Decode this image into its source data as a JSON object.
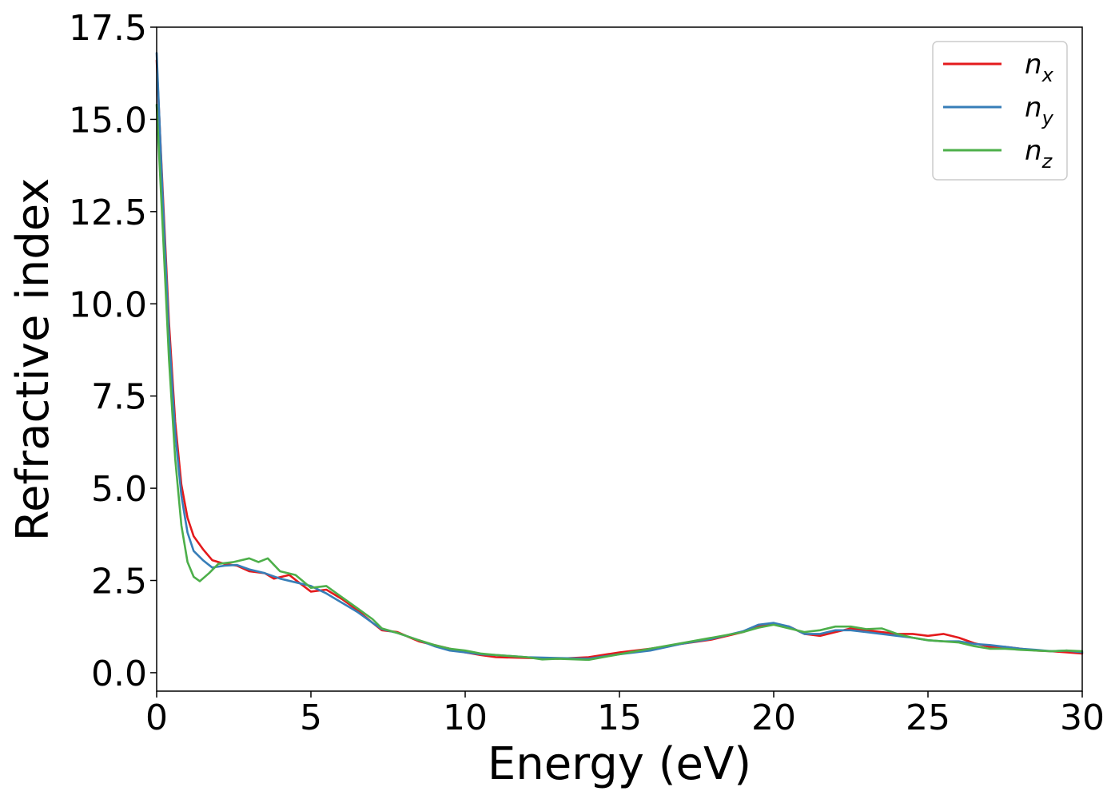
{
  "chart_data": {
    "type": "line",
    "xlabel": "Energy (eV)",
    "ylabel": "Refractive index",
    "xlim": [
      0,
      30
    ],
    "ylim": [
      -0.5,
      17.5
    ],
    "x_ticks": [
      "0",
      "5",
      "10",
      "15",
      "20",
      "25",
      "30"
    ],
    "y_ticks": [
      "0.0",
      "2.5",
      "5.0",
      "7.5",
      "10.0",
      "12.5",
      "15.0",
      "17.5"
    ],
    "grid": false,
    "legend_position": "top-right",
    "series": [
      {
        "name": "n_x",
        "label_base": "n",
        "label_sub": "x",
        "color": "#e41a1c",
        "points": [
          [
            0,
            16.6
          ],
          [
            0.2,
            13.0
          ],
          [
            0.4,
            9.5
          ],
          [
            0.6,
            6.8
          ],
          [
            0.8,
            5.1
          ],
          [
            1.0,
            4.2
          ],
          [
            1.2,
            3.7
          ],
          [
            1.5,
            3.35
          ],
          [
            1.8,
            3.05
          ],
          [
            2.2,
            2.95
          ],
          [
            2.6,
            2.9
          ],
          [
            3.0,
            2.75
          ],
          [
            3.5,
            2.7
          ],
          [
            3.8,
            2.55
          ],
          [
            4.3,
            2.65
          ],
          [
            4.6,
            2.45
          ],
          [
            5.0,
            2.2
          ],
          [
            5.5,
            2.25
          ],
          [
            6.0,
            2.0
          ],
          [
            6.5,
            1.7
          ],
          [
            7.0,
            1.35
          ],
          [
            7.3,
            1.15
          ],
          [
            7.8,
            1.1
          ],
          [
            8.5,
            0.85
          ],
          [
            9.0,
            0.75
          ],
          [
            9.5,
            0.65
          ],
          [
            10.0,
            0.55
          ],
          [
            10.5,
            0.48
          ],
          [
            11.0,
            0.42
          ],
          [
            12.0,
            0.4
          ],
          [
            13.0,
            0.38
          ],
          [
            14.0,
            0.42
          ],
          [
            15.0,
            0.55
          ],
          [
            16.0,
            0.65
          ],
          [
            17.0,
            0.78
          ],
          [
            18.0,
            0.9
          ],
          [
            19.0,
            1.1
          ],
          [
            19.5,
            1.25
          ],
          [
            20.0,
            1.32
          ],
          [
            20.5,
            1.25
          ],
          [
            21.0,
            1.05
          ],
          [
            21.5,
            1.0
          ],
          [
            22.0,
            1.1
          ],
          [
            22.5,
            1.2
          ],
          [
            23.0,
            1.15
          ],
          [
            23.5,
            1.1
          ],
          [
            24.0,
            1.05
          ],
          [
            24.5,
            1.05
          ],
          [
            25.0,
            1.0
          ],
          [
            25.5,
            1.05
          ],
          [
            26.0,
            0.95
          ],
          [
            26.5,
            0.8
          ],
          [
            27.0,
            0.7
          ],
          [
            27.5,
            0.7
          ],
          [
            28.0,
            0.65
          ],
          [
            28.5,
            0.6
          ],
          [
            29.0,
            0.58
          ],
          [
            29.5,
            0.55
          ],
          [
            30.0,
            0.52
          ]
        ]
      },
      {
        "name": "n_y",
        "label_base": "n",
        "label_sub": "y",
        "color": "#377eb8",
        "points": [
          [
            0,
            16.8
          ],
          [
            0.2,
            12.8
          ],
          [
            0.4,
            9.2
          ],
          [
            0.6,
            6.5
          ],
          [
            0.8,
            4.8
          ],
          [
            1.0,
            3.8
          ],
          [
            1.2,
            3.3
          ],
          [
            1.5,
            3.05
          ],
          [
            1.8,
            2.85
          ],
          [
            2.2,
            2.9
          ],
          [
            2.6,
            2.92
          ],
          [
            3.0,
            2.8
          ],
          [
            3.5,
            2.7
          ],
          [
            4.0,
            2.55
          ],
          [
            4.5,
            2.45
          ],
          [
            5.0,
            2.35
          ],
          [
            5.5,
            2.15
          ],
          [
            6.0,
            1.9
          ],
          [
            6.5,
            1.65
          ],
          [
            7.0,
            1.35
          ],
          [
            7.3,
            1.18
          ],
          [
            7.8,
            1.08
          ],
          [
            8.5,
            0.88
          ],
          [
            9.0,
            0.72
          ],
          [
            9.5,
            0.6
          ],
          [
            10.0,
            0.55
          ],
          [
            10.5,
            0.5
          ],
          [
            11.0,
            0.48
          ],
          [
            12.0,
            0.42
          ],
          [
            13.0,
            0.4
          ],
          [
            14.0,
            0.38
          ],
          [
            15.0,
            0.5
          ],
          [
            16.0,
            0.6
          ],
          [
            17.0,
            0.78
          ],
          [
            18.0,
            0.92
          ],
          [
            19.0,
            1.12
          ],
          [
            19.5,
            1.3
          ],
          [
            20.0,
            1.35
          ],
          [
            20.5,
            1.25
          ],
          [
            21.0,
            1.05
          ],
          [
            21.5,
            1.05
          ],
          [
            22.0,
            1.15
          ],
          [
            22.5,
            1.15
          ],
          [
            23.0,
            1.1
          ],
          [
            23.5,
            1.05
          ],
          [
            24.0,
            1.0
          ],
          [
            24.5,
            0.95
          ],
          [
            25.0,
            0.88
          ],
          [
            25.5,
            0.85
          ],
          [
            26.0,
            0.85
          ],
          [
            26.5,
            0.78
          ],
          [
            27.0,
            0.75
          ],
          [
            27.5,
            0.7
          ],
          [
            28.0,
            0.65
          ],
          [
            28.5,
            0.62
          ],
          [
            29.0,
            0.58
          ],
          [
            29.5,
            0.6
          ],
          [
            30.0,
            0.55
          ]
        ]
      },
      {
        "name": "n_z",
        "label_base": "n",
        "label_sub": "z",
        "color": "#4daf4a",
        "points": [
          [
            0,
            15.4
          ],
          [
            0.2,
            12.0
          ],
          [
            0.4,
            8.5
          ],
          [
            0.6,
            5.8
          ],
          [
            0.8,
            4.0
          ],
          [
            1.0,
            3.0
          ],
          [
            1.2,
            2.6
          ],
          [
            1.4,
            2.48
          ],
          [
            1.7,
            2.7
          ],
          [
            2.0,
            2.95
          ],
          [
            2.5,
            3.0
          ],
          [
            3.0,
            3.1
          ],
          [
            3.3,
            3.0
          ],
          [
            3.6,
            3.1
          ],
          [
            4.0,
            2.75
          ],
          [
            4.5,
            2.65
          ],
          [
            5.0,
            2.3
          ],
          [
            5.5,
            2.35
          ],
          [
            6.0,
            2.05
          ],
          [
            6.5,
            1.75
          ],
          [
            7.0,
            1.45
          ],
          [
            7.3,
            1.2
          ],
          [
            7.8,
            1.08
          ],
          [
            8.5,
            0.88
          ],
          [
            9.0,
            0.75
          ],
          [
            9.5,
            0.65
          ],
          [
            10.0,
            0.6
          ],
          [
            10.5,
            0.52
          ],
          [
            11.0,
            0.48
          ],
          [
            12.0,
            0.42
          ],
          [
            12.5,
            0.36
          ],
          [
            13.0,
            0.38
          ],
          [
            14.0,
            0.35
          ],
          [
            15.0,
            0.5
          ],
          [
            16.0,
            0.65
          ],
          [
            17.0,
            0.8
          ],
          [
            18.0,
            0.95
          ],
          [
            19.0,
            1.1
          ],
          [
            19.5,
            1.22
          ],
          [
            20.0,
            1.3
          ],
          [
            20.5,
            1.2
          ],
          [
            21.0,
            1.1
          ],
          [
            21.5,
            1.15
          ],
          [
            22.0,
            1.25
          ],
          [
            22.5,
            1.25
          ],
          [
            23.0,
            1.18
          ],
          [
            23.5,
            1.2
          ],
          [
            24.0,
            1.05
          ],
          [
            24.5,
            0.95
          ],
          [
            25.0,
            0.88
          ],
          [
            25.5,
            0.85
          ],
          [
            26.0,
            0.82
          ],
          [
            26.5,
            0.72
          ],
          [
            27.0,
            0.65
          ],
          [
            27.5,
            0.65
          ],
          [
            28.0,
            0.62
          ],
          [
            28.5,
            0.6
          ],
          [
            29.0,
            0.58
          ],
          [
            29.5,
            0.6
          ],
          [
            30.0,
            0.58
          ]
        ]
      }
    ]
  }
}
